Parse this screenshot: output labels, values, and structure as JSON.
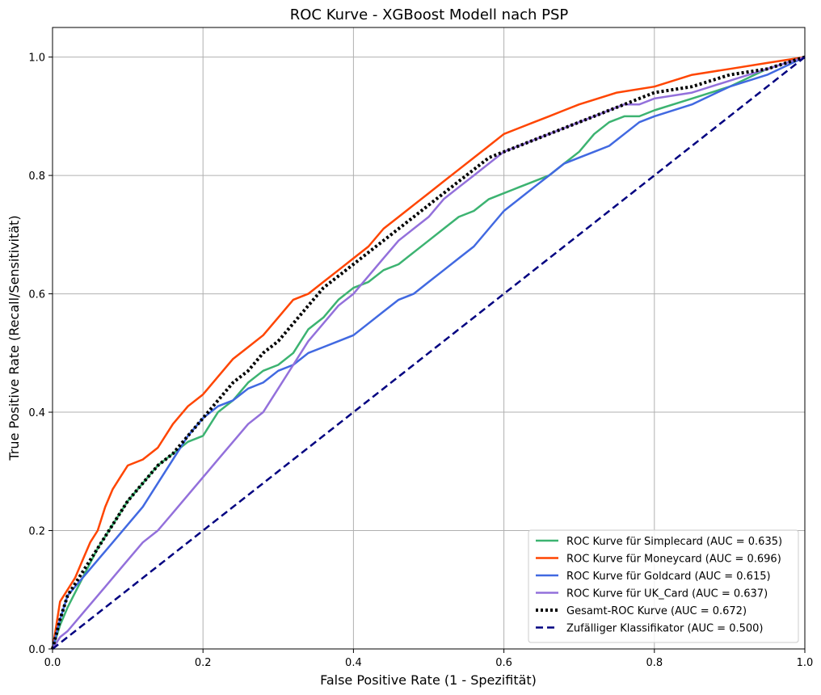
{
  "chart_data": {
    "type": "line",
    "title": "ROC Kurve - XGBoost Modell nach PSP",
    "xlabel": "False Positive Rate (1 - Spezifität)",
    "ylabel": "True Positive Rate (Recall/Sensitivität)",
    "xlim": [
      0.0,
      1.0
    ],
    "ylim": [
      0.0,
      1.05
    ],
    "xticks": [
      "0.0",
      "0.2",
      "0.4",
      "0.6",
      "0.8",
      "1.0"
    ],
    "yticks": [
      "0.0",
      "0.2",
      "0.4",
      "0.6",
      "0.8",
      "1.0"
    ],
    "grid": true,
    "legend_position": "lower-right",
    "series": [
      {
        "name": "ROC Kurve für Simplecard (AUC = 0.635)",
        "color": "#3cb371",
        "style": "solid",
        "x": [
          0,
          0.01,
          0.02,
          0.04,
          0.06,
          0.08,
          0.1,
          0.12,
          0.14,
          0.16,
          0.18,
          0.2,
          0.22,
          0.24,
          0.26,
          0.28,
          0.3,
          0.32,
          0.34,
          0.36,
          0.38,
          0.4,
          0.42,
          0.44,
          0.46,
          0.48,
          0.5,
          0.52,
          0.54,
          0.56,
          0.58,
          0.6,
          0.62,
          0.64,
          0.66,
          0.68,
          0.7,
          0.72,
          0.74,
          0.76,
          0.78,
          0.8,
          0.85,
          0.9,
          0.95,
          1.0
        ],
        "y": [
          0,
          0.04,
          0.07,
          0.12,
          0.17,
          0.21,
          0.25,
          0.28,
          0.31,
          0.33,
          0.35,
          0.36,
          0.4,
          0.42,
          0.45,
          0.47,
          0.48,
          0.5,
          0.54,
          0.56,
          0.59,
          0.61,
          0.62,
          0.64,
          0.65,
          0.67,
          0.69,
          0.71,
          0.73,
          0.74,
          0.76,
          0.77,
          0.78,
          0.79,
          0.8,
          0.82,
          0.84,
          0.87,
          0.89,
          0.9,
          0.9,
          0.91,
          0.93,
          0.95,
          0.98,
          1.0
        ]
      },
      {
        "name": "ROC Kurve für Moneycard (AUC = 0.696)",
        "color": "#ff4500",
        "style": "solid",
        "x": [
          0,
          0.005,
          0.01,
          0.02,
          0.03,
          0.04,
          0.05,
          0.06,
          0.07,
          0.08,
          0.09,
          0.1,
          0.12,
          0.14,
          0.16,
          0.18,
          0.2,
          0.22,
          0.24,
          0.26,
          0.28,
          0.3,
          0.32,
          0.34,
          0.36,
          0.38,
          0.4,
          0.42,
          0.44,
          0.46,
          0.48,
          0.5,
          0.52,
          0.54,
          0.56,
          0.58,
          0.6,
          0.62,
          0.64,
          0.66,
          0.68,
          0.7,
          0.75,
          0.8,
          0.85,
          0.9,
          0.95,
          1.0
        ],
        "y": [
          0,
          0.04,
          0.08,
          0.1,
          0.12,
          0.15,
          0.18,
          0.2,
          0.24,
          0.27,
          0.29,
          0.31,
          0.32,
          0.34,
          0.38,
          0.41,
          0.43,
          0.46,
          0.49,
          0.51,
          0.53,
          0.56,
          0.59,
          0.6,
          0.62,
          0.64,
          0.66,
          0.68,
          0.71,
          0.73,
          0.75,
          0.77,
          0.79,
          0.81,
          0.83,
          0.85,
          0.87,
          0.88,
          0.89,
          0.9,
          0.91,
          0.92,
          0.94,
          0.95,
          0.97,
          0.98,
          0.99,
          1.0
        ]
      },
      {
        "name": "ROC Kurve für Goldcard (AUC = 0.615)",
        "color": "#4169e1",
        "style": "solid",
        "x": [
          0,
          0.01,
          0.02,
          0.04,
          0.06,
          0.08,
          0.1,
          0.12,
          0.14,
          0.16,
          0.18,
          0.2,
          0.22,
          0.24,
          0.26,
          0.28,
          0.3,
          0.32,
          0.34,
          0.36,
          0.38,
          0.4,
          0.42,
          0.44,
          0.46,
          0.48,
          0.5,
          0.52,
          0.54,
          0.56,
          0.58,
          0.6,
          0.62,
          0.64,
          0.66,
          0.68,
          0.7,
          0.72,
          0.74,
          0.76,
          0.78,
          0.8,
          0.85,
          0.9,
          0.95,
          1.0
        ],
        "y": [
          0,
          0.05,
          0.09,
          0.12,
          0.15,
          0.18,
          0.21,
          0.24,
          0.28,
          0.32,
          0.36,
          0.39,
          0.41,
          0.42,
          0.44,
          0.45,
          0.47,
          0.48,
          0.5,
          0.51,
          0.52,
          0.53,
          0.55,
          0.57,
          0.59,
          0.6,
          0.62,
          0.64,
          0.66,
          0.68,
          0.71,
          0.74,
          0.76,
          0.78,
          0.8,
          0.82,
          0.83,
          0.84,
          0.85,
          0.87,
          0.89,
          0.9,
          0.92,
          0.95,
          0.97,
          1.0
        ]
      },
      {
        "name": "ROC Kurve für UK_Card (AUC = 0.637)",
        "color": "#9370db",
        "style": "solid",
        "x": [
          0,
          0.01,
          0.02,
          0.04,
          0.06,
          0.08,
          0.1,
          0.12,
          0.14,
          0.16,
          0.18,
          0.2,
          0.22,
          0.24,
          0.26,
          0.28,
          0.3,
          0.32,
          0.34,
          0.36,
          0.38,
          0.4,
          0.42,
          0.44,
          0.46,
          0.48,
          0.5,
          0.52,
          0.54,
          0.56,
          0.58,
          0.6,
          0.62,
          0.64,
          0.66,
          0.68,
          0.7,
          0.72,
          0.74,
          0.76,
          0.78,
          0.8,
          0.85,
          0.9,
          0.95,
          1.0
        ],
        "y": [
          0,
          0.02,
          0.03,
          0.06,
          0.09,
          0.12,
          0.15,
          0.18,
          0.2,
          0.23,
          0.26,
          0.29,
          0.32,
          0.35,
          0.38,
          0.4,
          0.44,
          0.48,
          0.52,
          0.55,
          0.58,
          0.6,
          0.63,
          0.66,
          0.69,
          0.71,
          0.73,
          0.76,
          0.78,
          0.8,
          0.82,
          0.84,
          0.85,
          0.86,
          0.87,
          0.88,
          0.89,
          0.9,
          0.91,
          0.92,
          0.92,
          0.93,
          0.94,
          0.96,
          0.98,
          1.0
        ]
      },
      {
        "name": "Gesamt-ROC Kurve (AUC = 0.672)",
        "color": "#000000",
        "style": "dotted",
        "x": [
          0,
          0.01,
          0.02,
          0.04,
          0.06,
          0.08,
          0.1,
          0.12,
          0.14,
          0.16,
          0.18,
          0.2,
          0.22,
          0.24,
          0.26,
          0.28,
          0.3,
          0.32,
          0.34,
          0.36,
          0.38,
          0.4,
          0.42,
          0.44,
          0.46,
          0.48,
          0.5,
          0.52,
          0.54,
          0.56,
          0.58,
          0.6,
          0.62,
          0.64,
          0.66,
          0.68,
          0.7,
          0.72,
          0.74,
          0.76,
          0.78,
          0.8,
          0.85,
          0.9,
          0.95,
          1.0
        ],
        "y": [
          0,
          0.05,
          0.09,
          0.13,
          0.17,
          0.21,
          0.25,
          0.28,
          0.31,
          0.33,
          0.36,
          0.39,
          0.42,
          0.45,
          0.47,
          0.5,
          0.52,
          0.55,
          0.58,
          0.61,
          0.63,
          0.65,
          0.67,
          0.69,
          0.71,
          0.73,
          0.75,
          0.77,
          0.79,
          0.81,
          0.83,
          0.84,
          0.85,
          0.86,
          0.87,
          0.88,
          0.89,
          0.9,
          0.91,
          0.92,
          0.93,
          0.94,
          0.95,
          0.97,
          0.98,
          1.0
        ]
      },
      {
        "name": "Zufälliger Klassifikator (AUC = 0.500)",
        "color": "#000080",
        "style": "dashed",
        "x": [
          0,
          1
        ],
        "y": [
          0,
          1
        ]
      }
    ]
  }
}
